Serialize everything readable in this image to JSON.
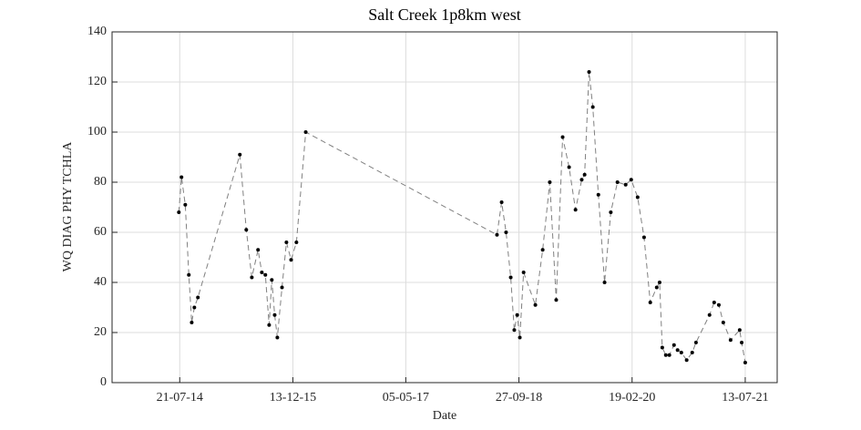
{
  "chart_data": {
    "type": "line",
    "title": "Salt Creek 1p8km west",
    "xlabel": "Date",
    "ylabel": "WQ DIAG PHY TCHLA",
    "x": [
      "2014-07-17",
      "2014-07-29",
      "2014-08-15",
      "2014-08-31",
      "2014-09-13",
      "2014-09-25",
      "2014-10-11",
      "2015-04-18",
      "2015-05-17",
      "2015-06-11",
      "2015-07-09",
      "2015-07-26",
      "2015-08-11",
      "2015-08-28",
      "2015-09-09",
      "2015-09-22",
      "2015-10-04",
      "2015-10-25",
      "2015-11-14",
      "2015-12-05",
      "2015-12-29",
      "2016-02-09",
      "2018-06-20",
      "2018-07-11",
      "2018-07-31",
      "2018-08-21",
      "2018-09-06",
      "2018-09-19",
      "2018-10-01",
      "2018-10-18",
      "2018-12-10",
      "2019-01-12",
      "2019-02-13",
      "2019-03-14",
      "2019-04-12",
      "2019-05-11",
      "2019-06-09",
      "2019-07-07",
      "2019-07-20",
      "2019-08-09",
      "2019-08-26",
      "2019-09-20",
      "2019-10-18",
      "2019-11-15",
      "2019-12-15",
      "2020-01-21",
      "2020-02-15",
      "2020-03-15",
      "2020-04-13",
      "2020-05-11",
      "2020-06-09",
      "2020-06-22",
      "2020-07-04",
      "2020-07-20",
      "2020-08-05",
      "2020-08-26",
      "2020-09-11",
      "2020-09-28",
      "2020-10-22",
      "2020-11-16",
      "2020-12-03",
      "2021-02-02",
      "2021-02-23",
      "2021-03-16",
      "2021-04-05",
      "2021-05-08",
      "2021-06-18",
      "2021-06-27",
      "2021-07-13"
    ],
    "values": [
      68,
      82,
      71,
      43,
      24,
      30,
      34,
      91,
      61,
      42,
      53,
      44,
      43,
      23,
      41,
      27,
      18,
      38,
      56,
      49,
      56,
      100,
      59,
      72,
      60,
      42,
      21,
      27,
      18,
      44,
      31,
      53,
      80,
      33,
      98,
      86,
      69,
      81,
      83,
      124,
      110,
      75,
      40,
      68,
      80,
      79,
      81,
      74,
      58,
      32,
      38,
      40,
      14,
      11,
      11,
      15,
      13,
      12,
      9,
      12,
      16,
      27,
      32,
      31,
      24,
      17,
      21,
      16,
      8
    ],
    "color": "#808080",
    "marker_color": "#000000",
    "xlim": [
      "2013-09-19",
      "2021-12-04"
    ],
    "xticks": [
      {
        "value": "2014-07-21",
        "label": "21-07-14"
      },
      {
        "value": "2015-12-13",
        "label": "13-12-15"
      },
      {
        "value": "2017-05-05",
        "label": "05-05-17"
      },
      {
        "value": "2018-09-27",
        "label": "27-09-18"
      },
      {
        "value": "2020-02-19",
        "label": "19-02-20"
      },
      {
        "value": "2021-07-13",
        "label": "13-07-21"
      }
    ],
    "ylim": [
      0,
      140
    ],
    "yticks": [
      0,
      20,
      40,
      60,
      80,
      100,
      120,
      140
    ],
    "grid": true
  }
}
